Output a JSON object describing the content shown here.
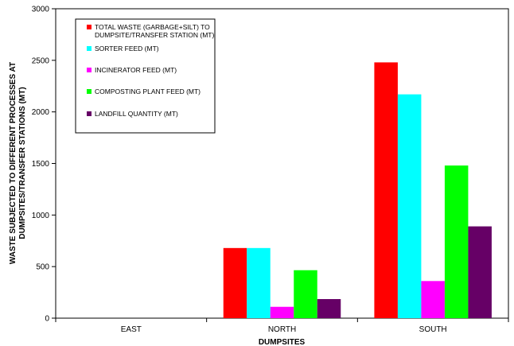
{
  "chart_data": {
    "type": "bar",
    "categories": [
      "EAST",
      "NORTH",
      "SOUTH"
    ],
    "series": [
      {
        "name": "TOTAL WASTE (GARBAGE+SILT) TO DUMPSITE/TRANSFER STATION (MT)",
        "legend_lines": [
          "TOTAL WASTE (GARBAGE+SILT) TO",
          "DUMPSITE/TRANSFER STATION (MT)"
        ],
        "color": "#ff0000",
        "values": [
          0,
          680,
          2480
        ]
      },
      {
        "name": "SORTER FEED (MT)",
        "legend_lines": [
          "SORTER FEED (MT)"
        ],
        "color": "#00ffff",
        "values": [
          0,
          680,
          2170
        ]
      },
      {
        "name": "INCINERATOR FEED (MT)",
        "legend_lines": [
          "INCINERATOR FEED (MT)"
        ],
        "color": "#ff00ff",
        "values": [
          0,
          110,
          360
        ]
      },
      {
        "name": "COMPOSTING PLANT FEED (MT)",
        "legend_lines": [
          "COMPOSTING PLANT FEED (MT)"
        ],
        "color": "#00ff00",
        "values": [
          0,
          465,
          1480
        ]
      },
      {
        "name": "LANDFILL QUANTITY (MT)",
        "legend_lines": [
          "LANDFILL QUANTITY (MT)"
        ],
        "color": "#660066",
        "values": [
          0,
          185,
          890
        ]
      }
    ],
    "xlabel": "DUMPSITES",
    "ylabel_lines": [
      "WASTE SUBJECTED TO DIFFERENT PROCESSES AT",
      "DUMPSITES/TRANSFER STATIONS (MT)"
    ],
    "ylim": [
      0,
      3000
    ],
    "yticks": [
      0,
      500,
      1000,
      1500,
      2000,
      2500,
      3000
    ],
    "grid": false,
    "legend_position": "top-left"
  }
}
